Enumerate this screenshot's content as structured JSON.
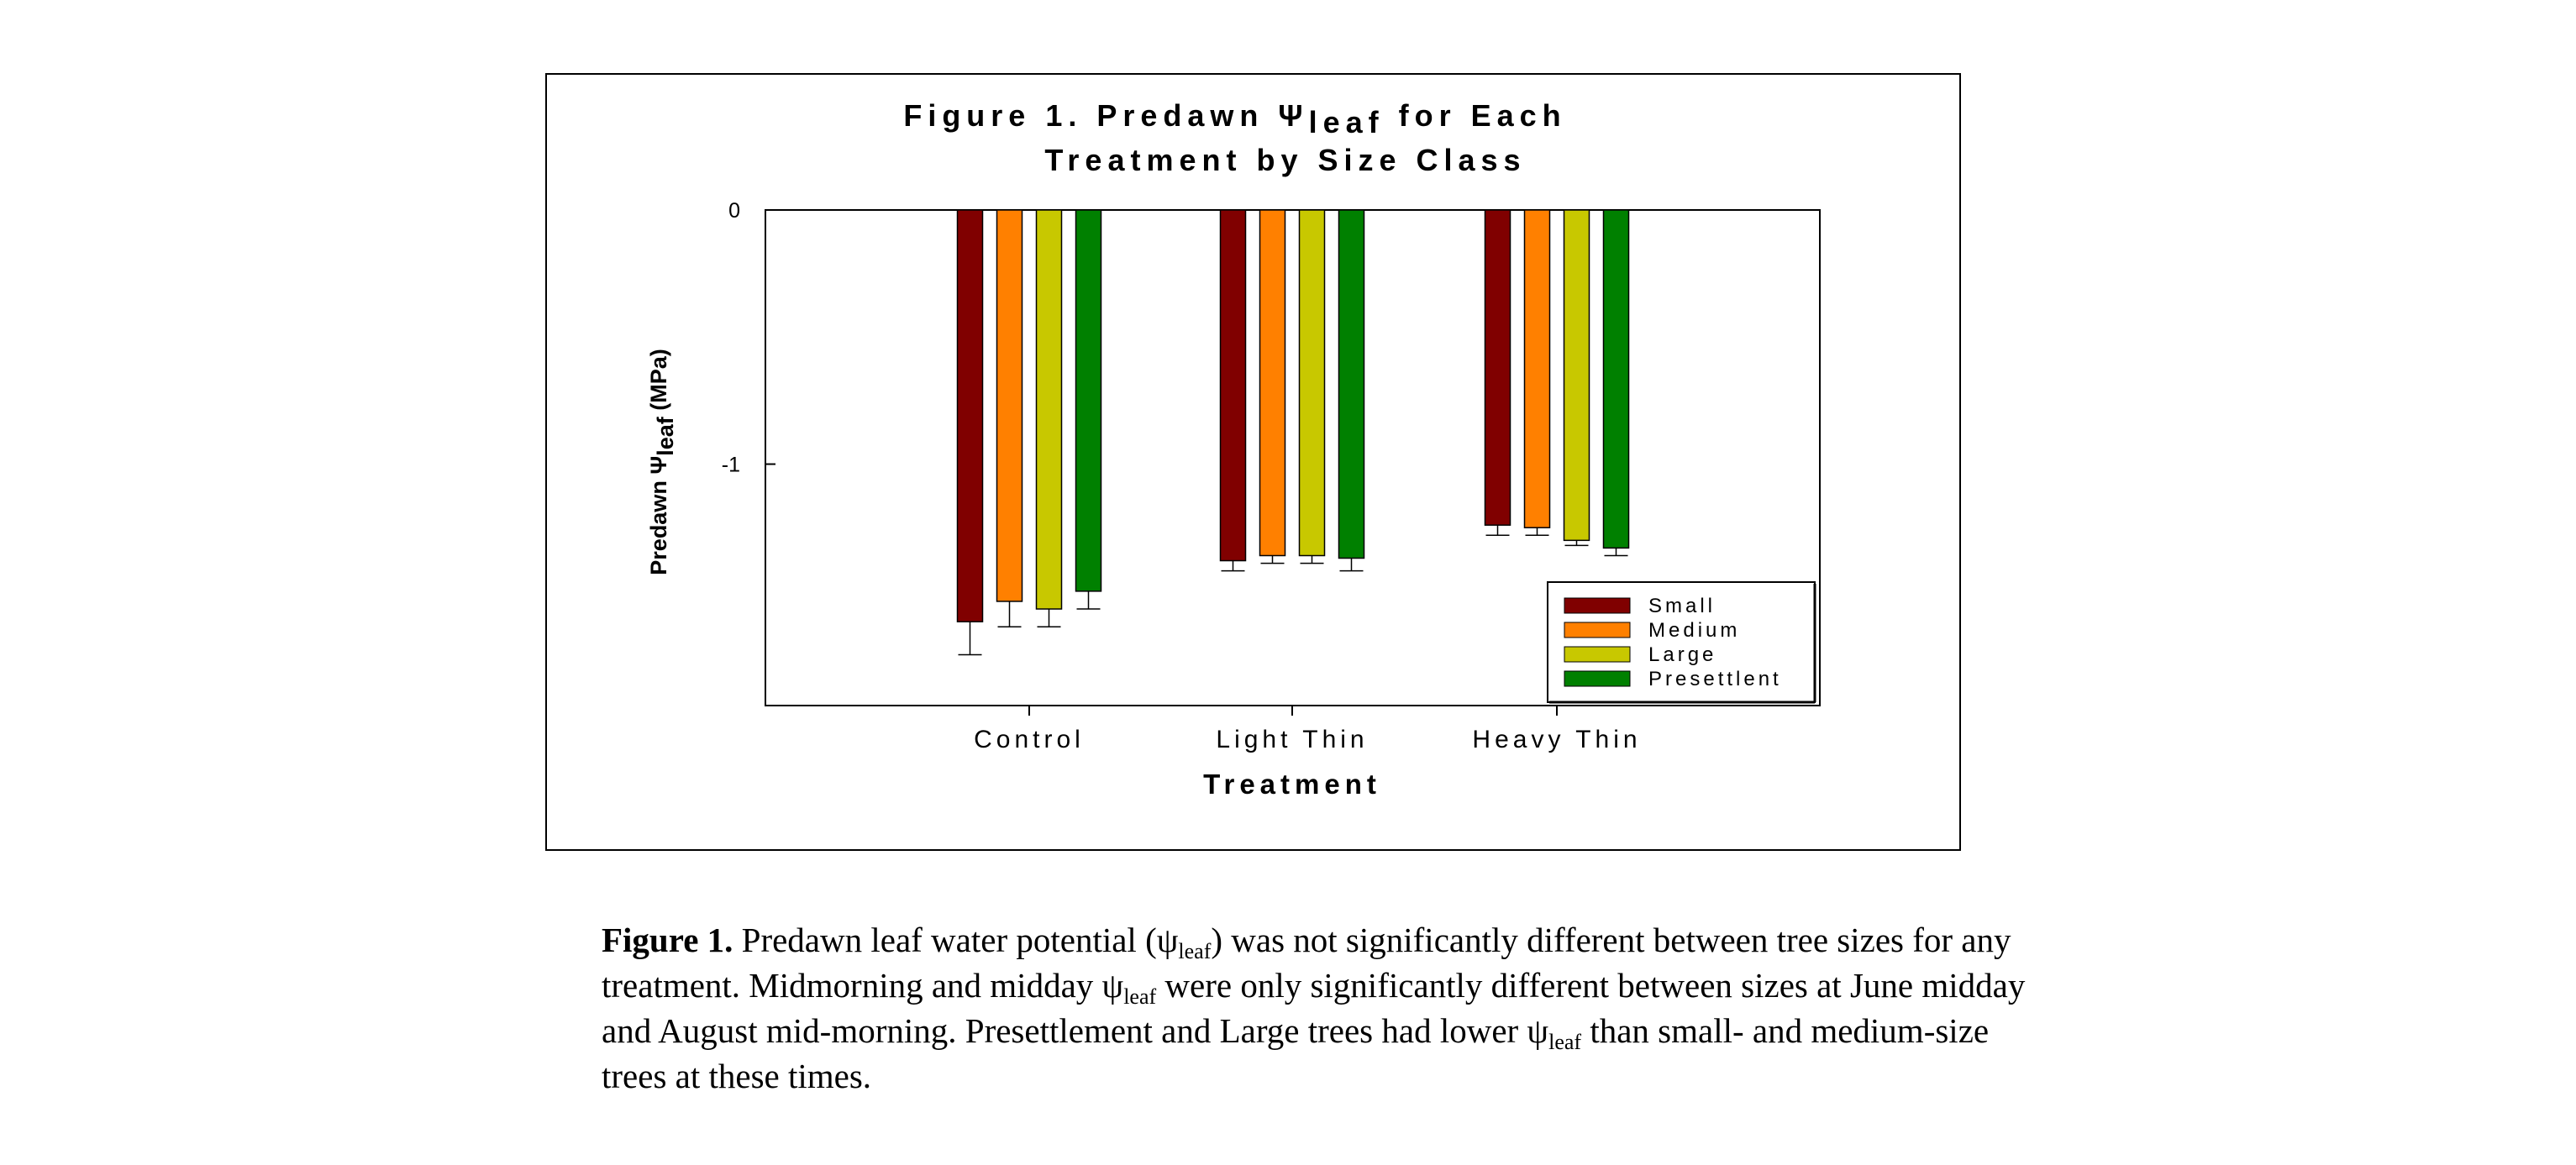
{
  "chart_data": {
    "type": "bar",
    "title": {
      "line1_prefix": "Figure 1.  Predawn ",
      "symbol": "Ψ",
      "subscript": "leaf",
      "line1_suffix": " for Each",
      "line2": "Treatment by Size Class"
    },
    "xlabel": "Treatment",
    "ylabel": {
      "prefix": "Predawn ",
      "symbol": "Ψ",
      "subscript": "leaf",
      "suffix": " (MPa)"
    },
    "ylim": [
      -1.95,
      0
    ],
    "yticks": [
      {
        "value": 0,
        "label": "0"
      },
      {
        "value": -1,
        "label": "-1"
      }
    ],
    "categories": [
      "Control",
      "Light Thin",
      "Heavy Thin"
    ],
    "series": [
      {
        "name": "Small",
        "color": "#800000",
        "values": [
          -1.62,
          -1.38,
          -1.24
        ],
        "errors": [
          0.13,
          0.04,
          0.04
        ]
      },
      {
        "name": "Medium",
        "color": "#ff8000",
        "values": [
          -1.54,
          -1.36,
          -1.25
        ],
        "errors": [
          0.1,
          0.03,
          0.03
        ]
      },
      {
        "name": "Large",
        "color": "#c8c800",
        "values": [
          -1.57,
          -1.36,
          -1.3
        ],
        "errors": [
          0.07,
          0.03,
          0.02
        ]
      },
      {
        "name": "Presettlent",
        "color": "#008000",
        "values": [
          -1.5,
          -1.37,
          -1.33
        ],
        "errors": [
          0.07,
          0.05,
          0.03
        ]
      }
    ],
    "grid": false,
    "legend_position": "bottom-right"
  },
  "caption": {
    "label": "Figure 1.",
    "t1": "  Predawn leaf water potential (ψ",
    "s1": "leaf",
    "t2": ") was not significantly different between tree sizes for any treatment.  Midmorning and midday ψ",
    "s2": "leaf",
    "t3": " were only significantly different between sizes at June midday and August mid-morning.  Presettlement and Large trees had lower ψ",
    "s3": "leaf",
    "t4": " than small- and medium-size trees at these times."
  }
}
